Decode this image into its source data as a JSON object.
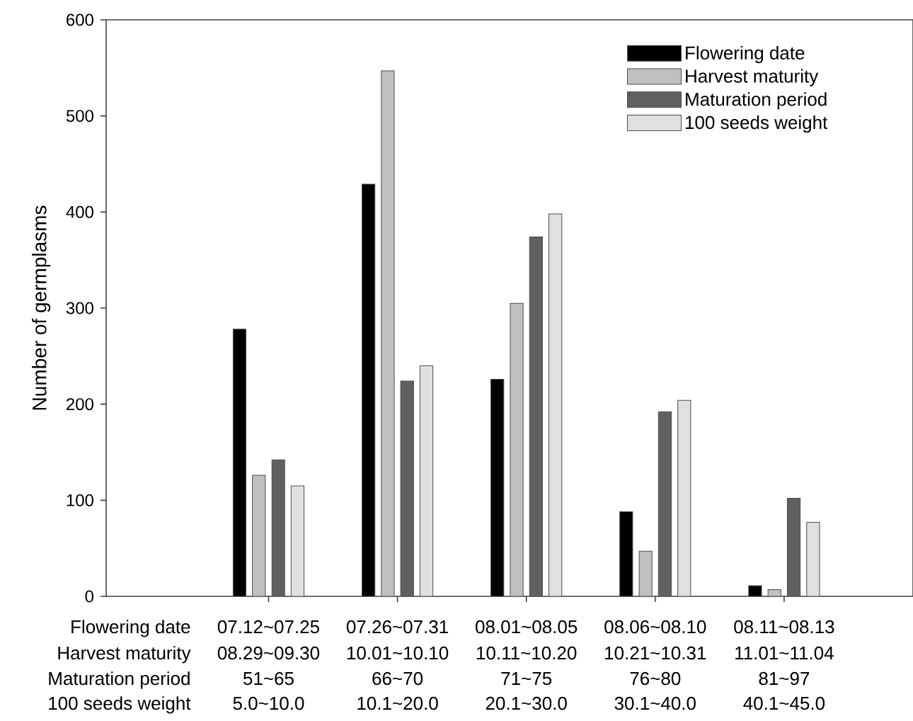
{
  "chart_data": {
    "type": "bar",
    "ylabel": "Number of germplasms",
    "categories": [
      "07.12~07.25",
      "07.26~07.31",
      "08.01~08.05",
      "08.06~08.10",
      "08.11~08.13"
    ],
    "annotations": [
      "Flowering date",
      "Harvest maturity",
      "08.29~09.30",
      "10.01~10.10",
      "10.11~10.20",
      "10.21~10.31",
      "11.01~11.04",
      "Maturation period",
      "51~65",
      "66~70",
      "71~75",
      "76~80",
      "81~97",
      "100 seeds weight",
      "5.0~10.0",
      "10.1~20.0",
      "20.1~30.0",
      "30.1~40.0",
      "40.1~45.0"
    ],
    "series": [
      {
        "name": "Flowering date",
        "color": "#000000",
        "values": [
          278,
          429,
          226,
          88,
          11
        ]
      },
      {
        "name": "Harvest maturity",
        "color": "#c0c0c0",
        "values": [
          126,
          547,
          305,
          47,
          7
        ]
      },
      {
        "name": "Maturation period",
        "color": "#606060",
        "values": [
          142,
          224,
          374,
          192,
          102
        ]
      },
      {
        "name": "100 seeds weight",
        "color": "#e0e0e0",
        "values": [
          115,
          240,
          398,
          204,
          77
        ]
      }
    ],
    "ylim": [
      0,
      600
    ],
    "yticks": [
      0,
      100,
      200,
      300,
      400,
      500,
      600
    ],
    "legend": "top right",
    "grid": false
  }
}
